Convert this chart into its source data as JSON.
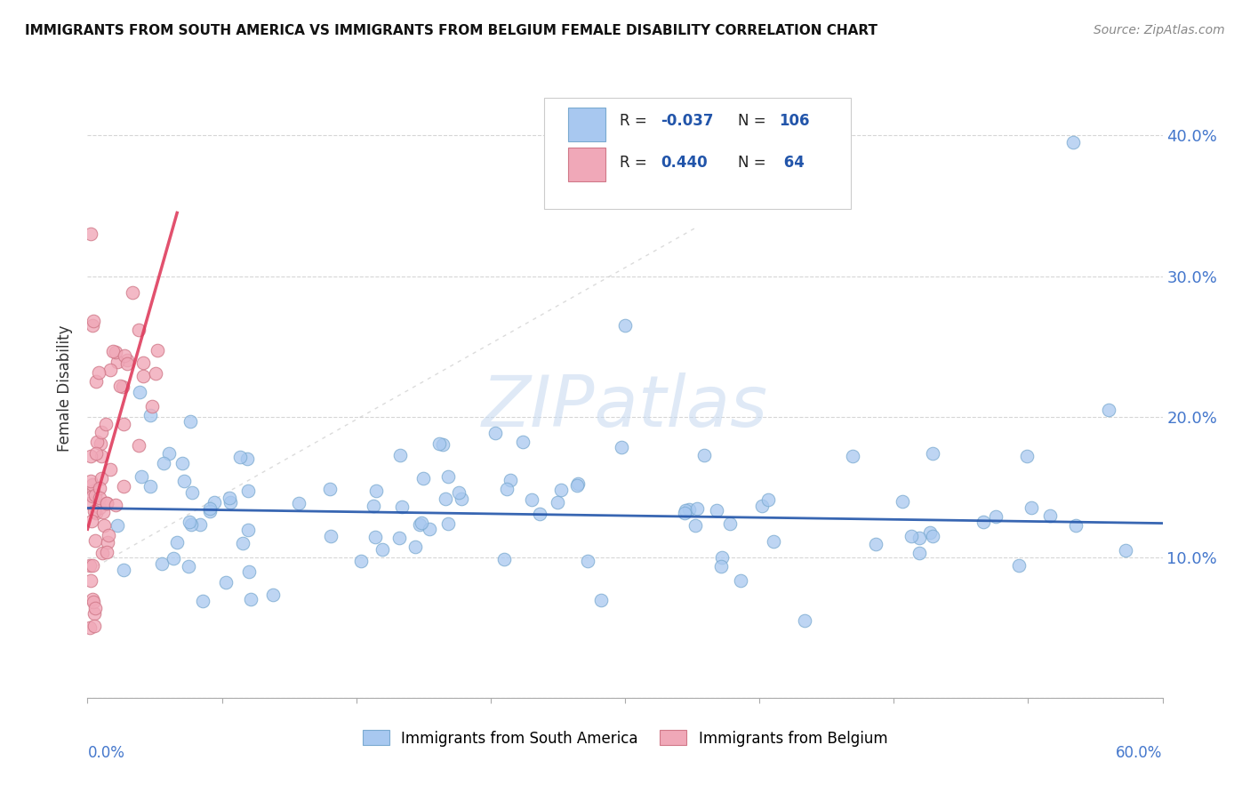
{
  "title": "IMMIGRANTS FROM SOUTH AMERICA VS IMMIGRANTS FROM BELGIUM FEMALE DISABILITY CORRELATION CHART",
  "source": "Source: ZipAtlas.com",
  "ylabel": "Female Disability",
  "yticks": [
    0.0,
    0.1,
    0.2,
    0.3,
    0.4
  ],
  "ytick_labels": [
    "",
    "10.0%",
    "20.0%",
    "30.0%",
    "40.0%"
  ],
  "xlim": [
    0.0,
    0.6
  ],
  "ylim": [
    0.0,
    0.44
  ],
  "color_blue": "#a8c8f0",
  "color_blue_edge": "#7aaad0",
  "color_pink": "#f0a8b8",
  "color_pink_edge": "#d07888",
  "trendline_blue_color": "#2255aa",
  "trendline_pink_color": "#dd3355",
  "watermark": "ZIPatlas",
  "watermark_color_zip": "#c8d8f0",
  "watermark_color_atlas": "#aabbd8",
  "legend_label1": "Immigrants from South America",
  "legend_label2": "Immigrants from Belgium",
  "grid_color": "#cccccc",
  "refline_color": "#cccccc",
  "background": "#ffffff",
  "title_color": "#111111",
  "source_color": "#888888",
  "axis_label_color": "#4477cc",
  "ylabel_color": "#333333"
}
